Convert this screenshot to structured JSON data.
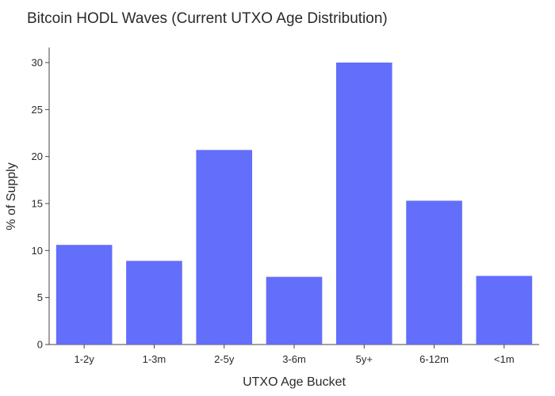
{
  "chart_data": {
    "type": "bar",
    "title": "Bitcoin HODL Waves (Current UTXO Age Distribution)",
    "xlabel": "UTXO Age Bucket",
    "ylabel": "% of Supply",
    "categories": [
      "1-2y",
      "1-3m",
      "2-5y",
      "3-6m",
      "5y+",
      "6-12m",
      "<1m"
    ],
    "values": [
      10.6,
      8.9,
      20.7,
      7.2,
      30.0,
      15.3,
      7.3
    ],
    "ylim": [
      0,
      31.6
    ],
    "yticks": [
      0,
      5,
      10,
      15,
      20,
      25,
      30
    ],
    "bar_color": "#636efa",
    "grid": false,
    "legend": "none"
  }
}
